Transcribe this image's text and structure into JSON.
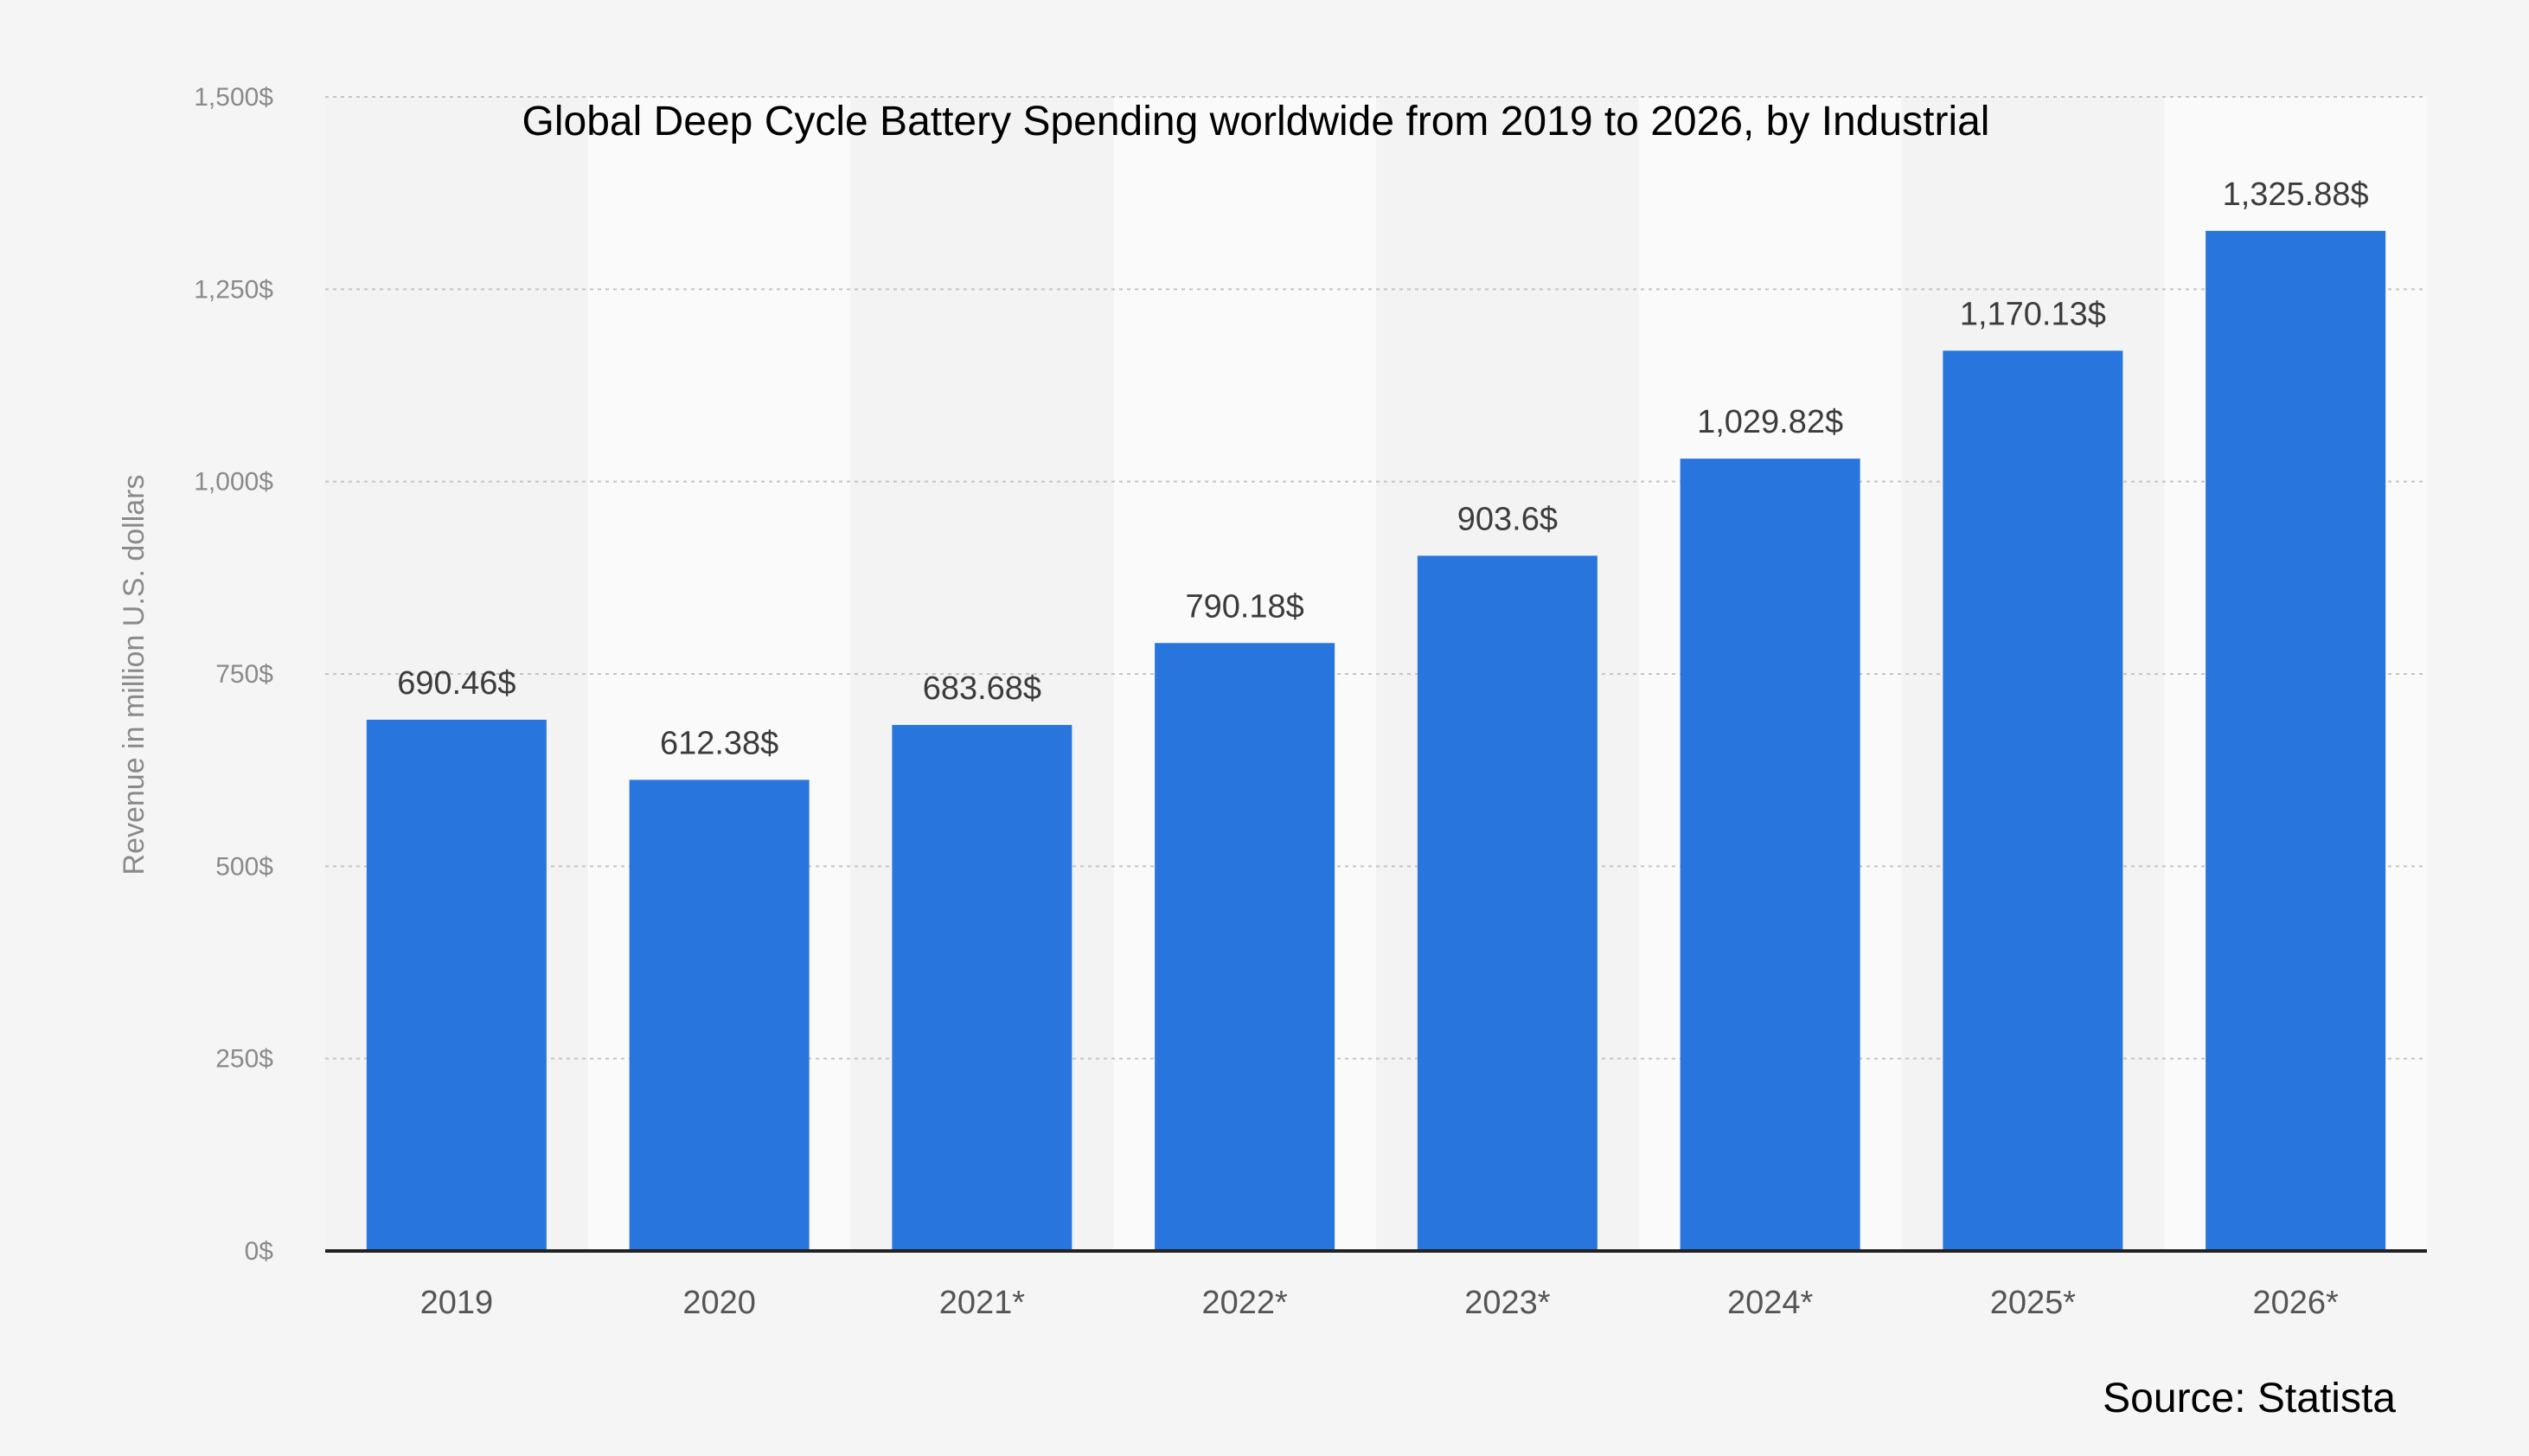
{
  "chart_data": {
    "type": "bar",
    "title": "Global Deep Cycle Battery Spending worldwide from 2019 to 2026, by Industrial",
    "xlabel": "",
    "ylabel": "Revenue in million U.S. dollars",
    "categories": [
      "2019",
      "2020",
      "2021*",
      "2022*",
      "2023*",
      "2024*",
      "2025*",
      "2026*"
    ],
    "values": [
      690.46,
      612.38,
      683.68,
      790.18,
      903.6,
      1029.82,
      1170.13,
      1325.88
    ],
    "data_labels": [
      "690.46$",
      "612.38$",
      "683.68$",
      "790.18$",
      "903.6$",
      "1,029.82$",
      "1,170.13$",
      "1,325.88$"
    ],
    "ylim": [
      0,
      1500
    ],
    "yticks": [
      0,
      250,
      500,
      750,
      1000,
      1250,
      1500
    ],
    "ytick_labels": [
      "0$",
      "250$",
      "500$",
      "750$",
      "1,000$",
      "1,250$",
      "1,500$"
    ],
    "grid": true,
    "bar_color": "#2876dd",
    "source": "Source: Statista"
  }
}
